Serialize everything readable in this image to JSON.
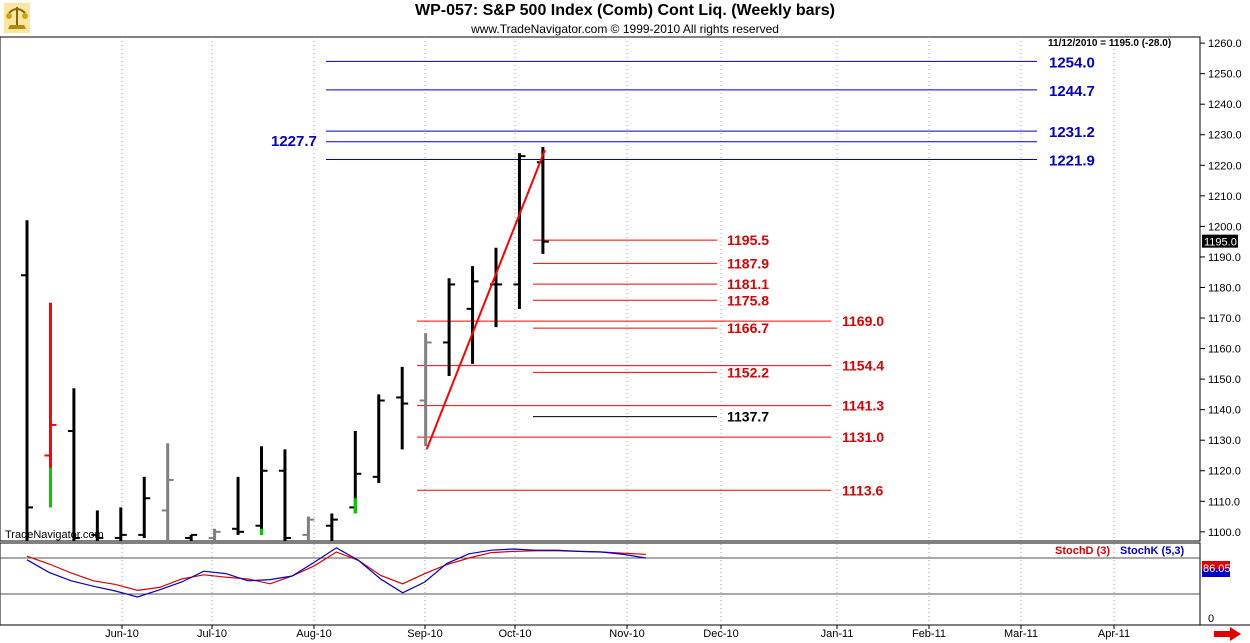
{
  "header": {
    "title": "WP-057:  S&P 500 Index (Comb) Cont Liq.  (Weekly bars)",
    "subtitle": "www.TradeNavigator.com © 1999-2010 All rights reserved",
    "last_quote": "11/12/2010 = 1195.0 (-28.0)",
    "watermark": "TradeNavigator.com"
  },
  "colors": {
    "up": "#000000",
    "down_gray": "#808080",
    "red": "#ff0000",
    "green": "#00cc00",
    "blue": "#0000cc",
    "label_red": "#dd0000",
    "stochD": "#dd0000",
    "stochK": "#0000cc"
  },
  "chart_data": {
    "type": "bar",
    "price_axis": {
      "range": [
        1097,
        1262
      ],
      "ticks": [
        "1260.0",
        "1250.0",
        "1240.0",
        "1230.0",
        "1220.0",
        "1210.0",
        "1200.0",
        "1190.0",
        "1180.0",
        "1170.0",
        "1160.0",
        "1150.0",
        "1140.0",
        "1130.0",
        "1120.0",
        "1110.0",
        "1100.0"
      ],
      "current_label": "1195.0"
    },
    "x_axis": {
      "labels": [
        "Jun-10",
        "Jul-10",
        "Aug-10",
        "Sep-10",
        "Oct-10",
        "Nov-10",
        "Dec-10",
        "Jan-11",
        "Feb-11",
        "Mar-11",
        "Apr-11"
      ]
    },
    "bars": [
      {
        "h": 1202,
        "l": 1097,
        "o": 1184,
        "c": 1108,
        "color": "black"
      },
      {
        "h": 1175,
        "l": 1108,
        "o": 1125,
        "c": 1135,
        "color": "red"
      },
      {
        "h": 1147,
        "l": 1097,
        "o": 1133,
        "c": 1098,
        "color": "black"
      },
      {
        "h": 1107,
        "l": 1097,
        "o": 1099,
        "c": 1098,
        "color": "black"
      },
      {
        "h": 1108,
        "l": 1097,
        "o": 1098,
        "c": 1099,
        "color": "black"
      },
      {
        "h": 1118,
        "l": 1098,
        "o": 1099,
        "c": 1111,
        "color": "black"
      },
      {
        "h": 1129,
        "l": 1097,
        "o": 1107,
        "c": 1117,
        "color": "gray"
      },
      {
        "h": 1099,
        "l": 1097,
        "o": 1098,
        "c": 1099,
        "color": "black"
      },
      {
        "h": 1101,
        "l": 1097,
        "o": 1098,
        "c": 1100,
        "color": "gray"
      },
      {
        "h": 1118,
        "l": 1099,
        "o": 1101,
        "c": 1100,
        "color": "black"
      },
      {
        "h": 1128,
        "l": 1099,
        "o": 1102,
        "c": 1120,
        "color": "black"
      },
      {
        "h": 1127,
        "l": 1097,
        "o": 1120,
        "c": 1098,
        "color": "black"
      },
      {
        "h": 1105,
        "l": 1097,
        "o": 1099,
        "c": 1104,
        "color": "gray"
      },
      {
        "h": 1106,
        "l": 1097,
        "o": 1102,
        "c": 1104,
        "color": "black"
      },
      {
        "h": 1133,
        "l": 1106,
        "o": 1108,
        "c": 1119,
        "color": "black"
      },
      {
        "h": 1145,
        "l": 1116,
        "o": 1118,
        "c": 1143,
        "color": "black"
      },
      {
        "h": 1154,
        "l": 1127,
        "o": 1144,
        "c": 1142,
        "color": "black"
      },
      {
        "h": 1165,
        "l": 1128,
        "o": 1143,
        "c": 1162,
        "color": "gray"
      },
      {
        "h": 1183,
        "l": 1151,
        "o": 1162,
        "c": 1181,
        "color": "black"
      },
      {
        "h": 1187,
        "l": 1155,
        "o": 1173,
        "c": 1182,
        "color": "black"
      },
      {
        "h": 1193,
        "l": 1167,
        "o": 1181,
        "c": 1181,
        "color": "black"
      },
      {
        "h": 1224,
        "l": 1173,
        "o": 1181,
        "c": 1223,
        "color": "black"
      },
      {
        "h": 1226,
        "l": 1191,
        "o": 1221,
        "c": 1195,
        "color": "black"
      }
    ],
    "trend_line": {
      "from": 1127,
      "to": 1225
    },
    "blue_levels": [
      1254.0,
      1244.7,
      1231.2,
      1227.7,
      1221.9
    ],
    "blue_labels": [
      "1254.0",
      "1244.7",
      "1231.2",
      "1227.7",
      "1221.9"
    ],
    "red_levels": [
      1195.5,
      1187.9,
      1181.1,
      1175.8,
      1166.7,
      1152.2,
      1169.0,
      1154.4,
      1141.3,
      1131.0,
      1113.6
    ],
    "red_labels": [
      "1195.5",
      "1187.9",
      "1181.1",
      "1175.8",
      "1166.7",
      "1152.2",
      "1169.0",
      "1154.4",
      "1141.3",
      "1131.0",
      "1113.6"
    ],
    "black_level": 1137.7,
    "black_label": "1137.7",
    "stochastic": {
      "labels": [
        "StochD (3)",
        "StochK (5,3)"
      ],
      "axis_ticks": [
        "0"
      ],
      "current_label": "86.05",
      "d_values": [
        83,
        70,
        55,
        42,
        36,
        26,
        31,
        45,
        52,
        48,
        45,
        37,
        50,
        67,
        90,
        76,
        51,
        37,
        54,
        69,
        80,
        89,
        91,
        92,
        92,
        91,
        90,
        88,
        86
      ],
      "k_values": [
        77,
        56,
        42,
        33,
        25,
        15,
        27,
        40,
        58,
        54,
        42,
        44,
        50,
        73,
        97,
        76,
        45,
        22,
        40,
        71,
        87,
        93,
        95,
        93,
        93,
        91,
        90,
        86,
        80
      ]
    }
  }
}
